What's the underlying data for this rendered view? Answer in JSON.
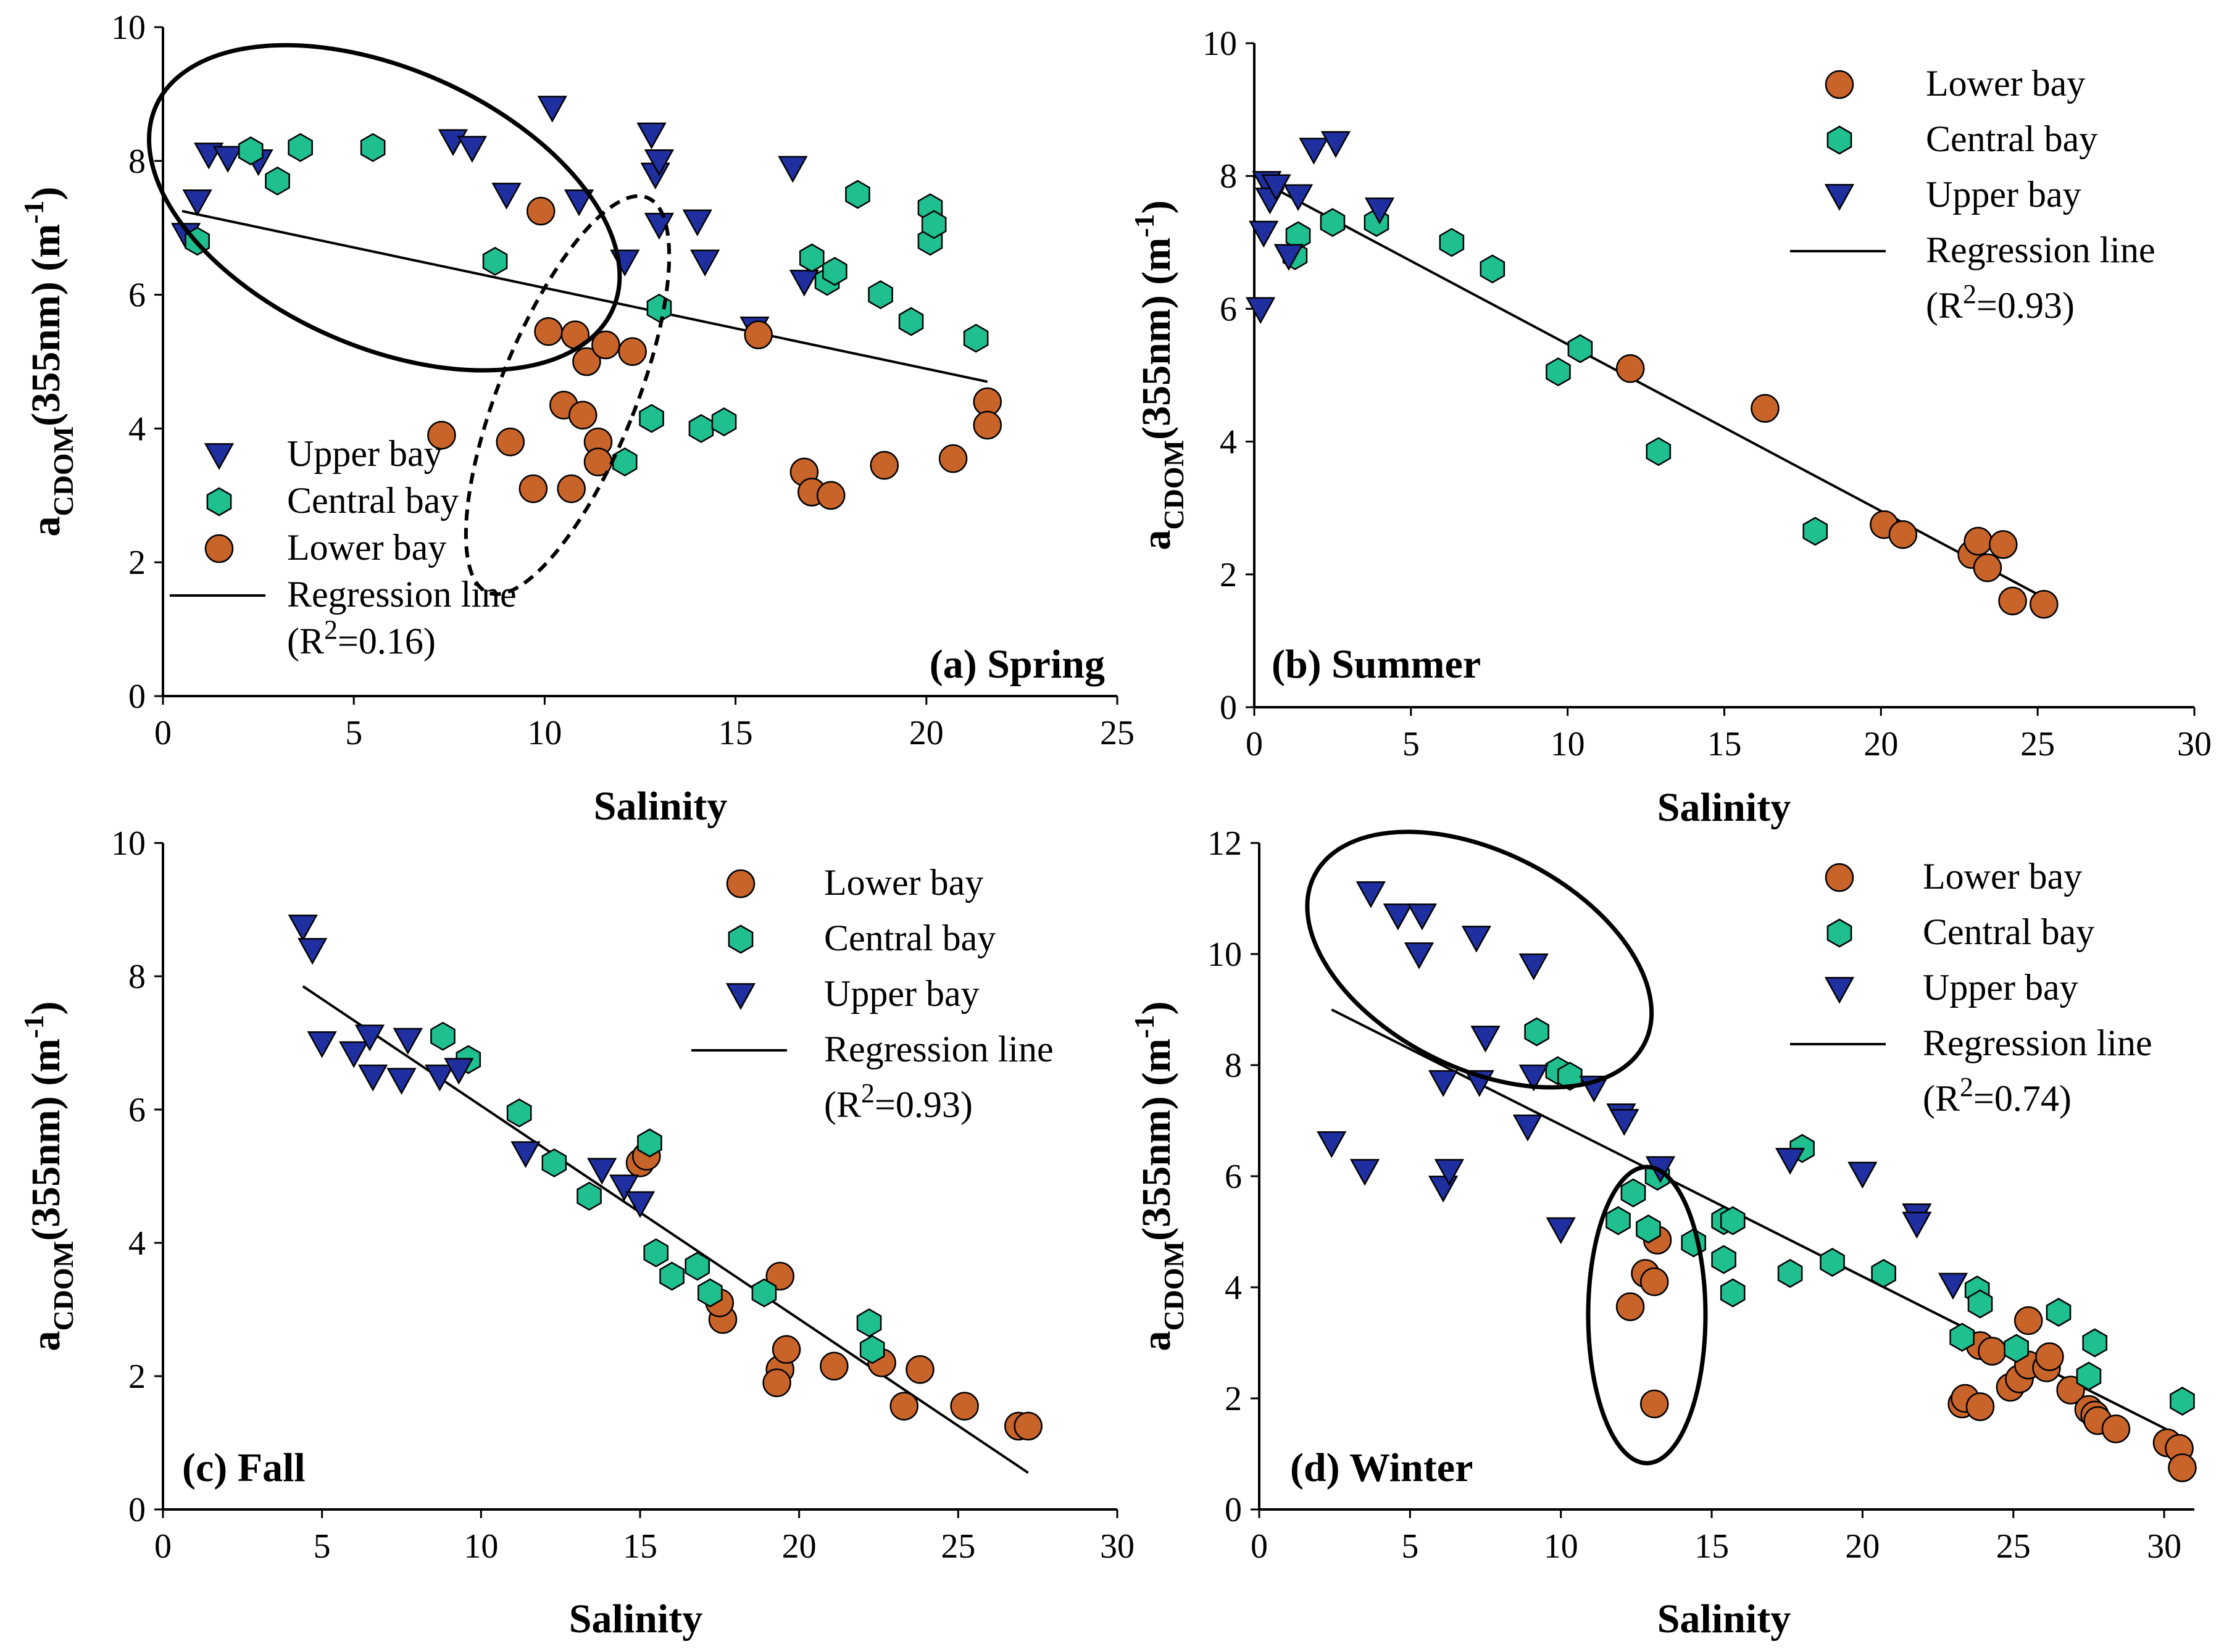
{
  "colors": {
    "lower": "#c8642a",
    "central": "#1fbf8f",
    "upper": "#1f2f9f"
  },
  "chart_data": [
    {
      "id": "a",
      "type": "scatter",
      "title": "(a) Spring",
      "xlabel": "Salinity",
      "ylabel_base": "a",
      "ylabel_sub": "CDOM",
      "ylabel_rest": "(355nm) (m",
      "ylabel_sup": "-1",
      "ylabel_end": ")",
      "xlim": [
        0,
        25
      ],
      "ylim": [
        0,
        10
      ],
      "xticks": [
        0,
        5,
        10,
        15,
        20,
        25
      ],
      "yticks": [
        0,
        2,
        4,
        6,
        8,
        10
      ],
      "legend": [
        "Upper bay",
        "Central bay",
        "Lower bay",
        "Regression line",
        "(R",
        "2",
        "=0.16)"
      ],
      "regression": [
        [
          0.5,
          7.25
        ],
        [
          21.6,
          4.7
        ]
      ],
      "series": [
        {
          "name": "Upper bay",
          "key": "upper",
          "points": [
            [
              0.6,
              6.9
            ],
            [
              0.9,
              7.4
            ],
            [
              1.2,
              8.1
            ],
            [
              1.7,
              8.05
            ],
            [
              2.5,
              8.0
            ],
            [
              7.6,
              8.3
            ],
            [
              8.1,
              8.2
            ],
            [
              9.0,
              7.5
            ],
            [
              10.2,
              8.8
            ],
            [
              10.9,
              7.4
            ],
            [
              12.1,
              6.5
            ],
            [
              12.8,
              8.4
            ],
            [
              12.9,
              7.8
            ],
            [
              13.0,
              8.0
            ],
            [
              13.0,
              7.05
            ],
            [
              14.0,
              7.1
            ],
            [
              14.2,
              6.5
            ],
            [
              15.5,
              5.5
            ],
            [
              16.5,
              7.9
            ],
            [
              16.8,
              6.2
            ]
          ]
        },
        {
          "name": "Central bay",
          "key": "central",
          "points": [
            [
              0.9,
              6.8
            ],
            [
              2.3,
              8.15
            ],
            [
              3.0,
              7.7
            ],
            [
              3.6,
              8.2
            ],
            [
              5.5,
              8.2
            ],
            [
              8.7,
              6.5
            ],
            [
              12.1,
              3.5
            ],
            [
              12.8,
              4.15
            ],
            [
              13.0,
              5.8
            ],
            [
              14.1,
              4.0
            ],
            [
              14.7,
              4.1
            ],
            [
              17.0,
              6.55
            ],
            [
              17.4,
              6.2
            ],
            [
              17.6,
              6.35
            ],
            [
              18.2,
              7.5
            ],
            [
              18.8,
              6.0
            ],
            [
              19.6,
              5.6
            ],
            [
              20.1,
              7.3
            ],
            [
              20.1,
              6.8
            ],
            [
              20.2,
              7.05
            ],
            [
              21.3,
              5.35
            ]
          ]
        },
        {
          "name": "Lower bay",
          "key": "lower",
          "points": [
            [
              7.3,
              3.9
            ],
            [
              9.1,
              3.8
            ],
            [
              9.7,
              3.1
            ],
            [
              9.9,
              7.25
            ],
            [
              10.1,
              5.45
            ],
            [
              10.5,
              4.35
            ],
            [
              10.7,
              3.1
            ],
            [
              10.8,
              5.4
            ],
            [
              11.0,
              4.2
            ],
            [
              11.1,
              5.0
            ],
            [
              11.4,
              3.8
            ],
            [
              11.4,
              3.5
            ],
            [
              11.6,
              5.25
            ],
            [
              12.3,
              5.15
            ],
            [
              15.6,
              5.4
            ],
            [
              16.8,
              3.35
            ],
            [
              17.0,
              3.05
            ],
            [
              17.5,
              3.0
            ],
            [
              18.9,
              3.45
            ],
            [
              20.7,
              3.55
            ],
            [
              21.6,
              4.4
            ],
            [
              21.6,
              4.05
            ]
          ]
        }
      ]
    },
    {
      "id": "b",
      "type": "scatter",
      "title": "(b) Summer",
      "xlabel": "Salinity",
      "ylabel_base": "a",
      "ylabel_sub": "CDOM",
      "ylabel_rest": "(355nm) (m",
      "ylabel_sup": "-1",
      "ylabel_end": ")",
      "xlim": [
        0,
        30
      ],
      "ylim": [
        0,
        10
      ],
      "xticks": [
        0,
        5,
        10,
        15,
        20,
        25,
        30
      ],
      "yticks": [
        0,
        2,
        4,
        6,
        8,
        10
      ],
      "legend": [
        "Lower bay",
        "Central bay",
        "Upper bay",
        "Regression line",
        "(R",
        "2",
        "=0.93)"
      ],
      "regression": [
        [
          0.3,
          7.9
        ],
        [
          25.2,
          1.65
        ]
      ],
      "series": [
        {
          "name": "Lower bay",
          "key": "lower",
          "points": [
            [
              12.0,
              5.1
            ],
            [
              16.3,
              4.5
            ],
            [
              20.1,
              2.75
            ],
            [
              20.7,
              2.6
            ],
            [
              22.9,
              2.3
            ],
            [
              23.1,
              2.5
            ],
            [
              23.4,
              2.1
            ],
            [
              23.9,
              2.45
            ],
            [
              24.2,
              1.6
            ],
            [
              25.2,
              1.55
            ]
          ]
        },
        {
          "name": "Central bay",
          "key": "central",
          "points": [
            [
              1.3,
              6.8
            ],
            [
              1.4,
              7.1
            ],
            [
              2.5,
              7.3
            ],
            [
              3.9,
              7.3
            ],
            [
              6.3,
              7.0
            ],
            [
              7.6,
              6.6
            ],
            [
              9.7,
              5.05
            ],
            [
              10.4,
              5.4
            ],
            [
              12.9,
              3.85
            ],
            [
              17.9,
              2.65
            ]
          ]
        },
        {
          "name": "Upper bay",
          "key": "upper",
          "points": [
            [
              0.2,
              6.0
            ],
            [
              0.3,
              7.15
            ],
            [
              0.4,
              7.9
            ],
            [
              0.5,
              7.65
            ],
            [
              0.7,
              7.85
            ],
            [
              1.1,
              6.8
            ],
            [
              1.4,
              7.7
            ],
            [
              1.9,
              8.4
            ],
            [
              2.6,
              8.5
            ],
            [
              4.0,
              7.5
            ]
          ]
        }
      ]
    },
    {
      "id": "c",
      "type": "scatter",
      "title": "(c) Fall",
      "xlabel": "Salinity",
      "ylabel_base": "a",
      "ylabel_sub": "CDOM",
      "ylabel_rest": "(355nm) (m",
      "ylabel_sup": "-1",
      "ylabel_end": ")",
      "xlim": [
        0,
        30
      ],
      "ylim": [
        0,
        10
      ],
      "xticks": [
        0,
        5,
        10,
        15,
        20,
        25,
        30
      ],
      "yticks": [
        0,
        2,
        4,
        6,
        8,
        10
      ],
      "legend": [
        "Lower bay",
        "Central bay",
        "Upper bay",
        "Regression line",
        "(R",
        "2",
        "=0.93)"
      ],
      "regression": [
        [
          4.4,
          7.85
        ],
        [
          27.2,
          0.55
        ]
      ],
      "series": [
        {
          "name": "Lower bay",
          "key": "lower",
          "points": [
            [
              15.0,
              5.2
            ],
            [
              15.2,
              5.3
            ],
            [
              17.6,
              2.85
            ],
            [
              17.5,
              3.1
            ],
            [
              19.4,
              3.5
            ],
            [
              19.4,
              2.1
            ],
            [
              19.6,
              2.4
            ],
            [
              19.3,
              1.9
            ],
            [
              21.1,
              2.15
            ],
            [
              22.6,
              2.2
            ],
            [
              23.3,
              1.55
            ],
            [
              23.8,
              2.1
            ],
            [
              25.2,
              1.55
            ],
            [
              26.9,
              1.25
            ],
            [
              27.2,
              1.25
            ]
          ]
        },
        {
          "name": "Central bay",
          "key": "central",
          "points": [
            [
              8.8,
              7.1
            ],
            [
              9.6,
              6.75
            ],
            [
              11.2,
              5.95
            ],
            [
              12.3,
              5.2
            ],
            [
              13.4,
              4.7
            ],
            [
              15.3,
              5.5
            ],
            [
              15.5,
              3.85
            ],
            [
              16.0,
              3.5
            ],
            [
              16.8,
              3.65
            ],
            [
              17.2,
              3.25
            ],
            [
              18.9,
              3.25
            ],
            [
              22.2,
              2.8
            ],
            [
              22.3,
              2.4
            ]
          ]
        },
        {
          "name": "Upper bay",
          "key": "upper",
          "points": [
            [
              4.4,
              8.75
            ],
            [
              4.7,
              8.4
            ],
            [
              5.0,
              7.0
            ],
            [
              6.0,
              6.85
            ],
            [
              6.5,
              7.1
            ],
            [
              6.6,
              6.5
            ],
            [
              7.5,
              6.45
            ],
            [
              7.7,
              7.05
            ],
            [
              8.7,
              6.5
            ],
            [
              9.3,
              6.6
            ],
            [
              11.4,
              5.35
            ],
            [
              13.8,
              5.1
            ],
            [
              14.5,
              4.85
            ],
            [
              15.0,
              4.6
            ]
          ]
        }
      ]
    },
    {
      "id": "d",
      "type": "scatter",
      "title": "(d) Winter",
      "xlabel": "Salinity",
      "ylabel_base": "a",
      "ylabel_sub": "CDOM",
      "ylabel_rest": "(355nm) (m",
      "ylabel_sup": "-1",
      "ylabel_end": ")",
      "xlim": [
        0,
        31
      ],
      "ylim": [
        0,
        12
      ],
      "xticks": [
        0,
        5,
        10,
        15,
        20,
        25,
        30
      ],
      "yticks": [
        0,
        2,
        4,
        6,
        8,
        10,
        12
      ],
      "legend": [
        "Lower bay",
        "Central bay",
        "Upper bay",
        "Regression line",
        "(R",
        "2",
        "=0.74)"
      ],
      "regression": [
        [
          2.4,
          9.0
        ],
        [
          30.6,
          1.3
        ]
      ],
      "series": [
        {
          "name": "Lower bay",
          "key": "lower",
          "points": [
            [
              12.3,
              3.65
            ],
            [
              12.8,
              4.25
            ],
            [
              13.1,
              4.1
            ],
            [
              13.2,
              4.85
            ],
            [
              13.1,
              1.9
            ],
            [
              23.3,
              1.9
            ],
            [
              23.4,
              2.0
            ],
            [
              23.9,
              1.85
            ],
            [
              23.9,
              2.95
            ],
            [
              24.3,
              2.85
            ],
            [
              24.9,
              2.2
            ],
            [
              25.2,
              2.35
            ],
            [
              25.5,
              3.4
            ],
            [
              25.5,
              2.6
            ],
            [
              26.1,
              2.55
            ],
            [
              26.2,
              2.75
            ],
            [
              26.9,
              2.15
            ],
            [
              27.5,
              1.8
            ],
            [
              27.7,
              1.7
            ],
            [
              27.8,
              1.6
            ],
            [
              28.4,
              1.45
            ],
            [
              30.1,
              1.2
            ],
            [
              30.5,
              1.1
            ],
            [
              30.6,
              0.75
            ]
          ]
        },
        {
          "name": "Central bay",
          "key": "central",
          "points": [
            [
              9.2,
              8.6
            ],
            [
              9.9,
              7.9
            ],
            [
              10.3,
              7.8
            ],
            [
              11.9,
              5.2
            ],
            [
              12.4,
              5.7
            ],
            [
              12.9,
              5.05
            ],
            [
              13.2,
              6.0
            ],
            [
              14.4,
              4.8
            ],
            [
              15.4,
              4.5
            ],
            [
              15.4,
              5.2
            ],
            [
              15.7,
              5.2
            ],
            [
              15.7,
              3.9
            ],
            [
              17.6,
              4.25
            ],
            [
              18.0,
              6.5
            ],
            [
              19.0,
              4.45
            ],
            [
              20.7,
              4.25
            ],
            [
              23.3,
              3.1
            ],
            [
              23.8,
              3.95
            ],
            [
              23.9,
              3.7
            ],
            [
              25.1,
              2.9
            ],
            [
              26.5,
              3.55
            ],
            [
              27.5,
              2.4
            ],
            [
              27.7,
              3.0
            ],
            [
              30.6,
              1.95
            ]
          ]
        },
        {
          "name": "Upper bay",
          "key": "upper",
          "points": [
            [
              2.4,
              6.6
            ],
            [
              3.5,
              6.1
            ],
            [
              3.7,
              11.1
            ],
            [
              4.6,
              10.7
            ],
            [
              5.3,
              10.0
            ],
            [
              5.4,
              10.7
            ],
            [
              6.1,
              7.7
            ],
            [
              6.1,
              5.8
            ],
            [
              6.3,
              6.1
            ],
            [
              7.2,
              10.3
            ],
            [
              7.3,
              7.7
            ],
            [
              7.5,
              8.5
            ],
            [
              8.9,
              6.9
            ],
            [
              9.1,
              9.8
            ],
            [
              9.1,
              7.8
            ],
            [
              10.0,
              5.05
            ],
            [
              11.1,
              7.6
            ],
            [
              12.0,
              7.1
            ],
            [
              12.1,
              7.0
            ],
            [
              13.3,
              6.15
            ],
            [
              17.6,
              6.3
            ],
            [
              20.0,
              6.05
            ],
            [
              21.8,
              5.3
            ],
            [
              21.8,
              5.15
            ],
            [
              23.0,
              4.05
            ]
          ]
        }
      ]
    }
  ]
}
